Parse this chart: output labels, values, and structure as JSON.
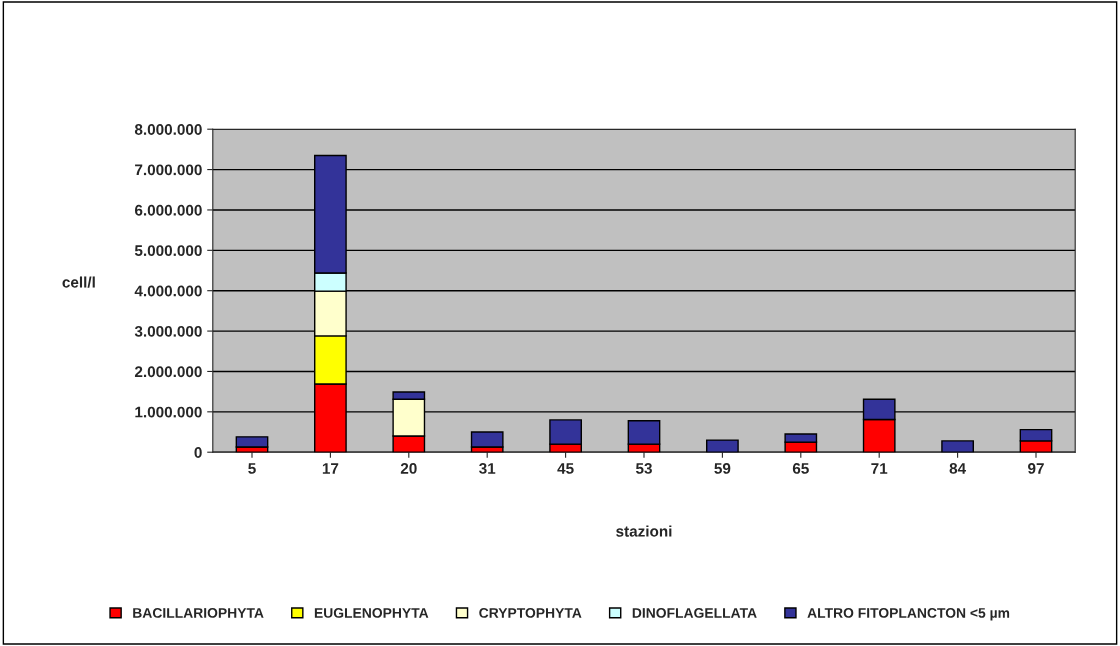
{
  "chart_data": {
    "type": "bar",
    "stacked": true,
    "xlabel": "stazioni",
    "ylabel": "cell/l",
    "categories": [
      "5",
      "17",
      "20",
      "31",
      "45",
      "53",
      "59",
      "65",
      "71",
      "84",
      "97"
    ],
    "series": [
      {
        "name": "BACILLARIOPHYTA",
        "color": "#ff0000",
        "values": [
          130000,
          1690000,
          400000,
          130000,
          200000,
          200000,
          null,
          250000,
          810000,
          null,
          280000
        ]
      },
      {
        "name": "EUGLENOPHYTA",
        "color": "#ffff00",
        "values": [
          null,
          1190000,
          null,
          null,
          null,
          null,
          null,
          null,
          null,
          null,
          null
        ]
      },
      {
        "name": "CRYPTOPHYTA",
        "color": "#ffffcc",
        "values": [
          null,
          1110000,
          910000,
          null,
          null,
          null,
          null,
          null,
          null,
          null,
          null
        ]
      },
      {
        "name": "DINOFLAGELLATA",
        "color": "#ccffff",
        "values": [
          null,
          450000,
          null,
          null,
          null,
          null,
          null,
          null,
          null,
          null,
          null
        ]
      },
      {
        "name": "ALTRO FITOPLANCTON <5 µm",
        "color": "#333399",
        "values": [
          250000,
          2910000,
          180000,
          370000,
          600000,
          580000,
          300000,
          200000,
          500000,
          280000,
          280000
        ]
      }
    ],
    "ylim": [
      0,
      8000000
    ],
    "yticks": [
      {
        "value": 0,
        "label": "0"
      },
      {
        "value": 1000000,
        "label": "1.000.000"
      },
      {
        "value": 2000000,
        "label": "2.000.000"
      },
      {
        "value": 3000000,
        "label": "3.000.000"
      },
      {
        "value": 4000000,
        "label": "4.000.000"
      },
      {
        "value": 5000000,
        "label": "5.000.000"
      },
      {
        "value": 6000000,
        "label": "6.000.000"
      },
      {
        "value": 7000000,
        "label": "7.000.000"
      },
      {
        "value": 8000000,
        "label": "8.000.000"
      }
    ],
    "grid": "y",
    "legend": "bottom"
  }
}
